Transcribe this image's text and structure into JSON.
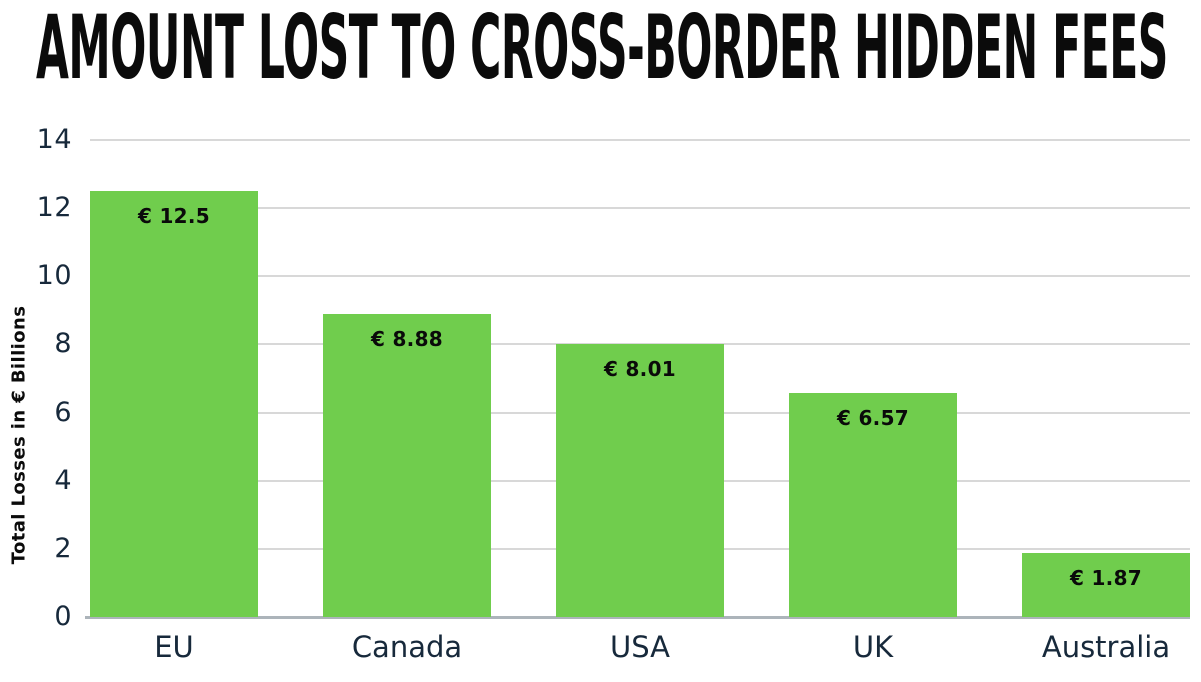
{
  "title": "AMOUNT LOST TO CROSS-BORDER HIDDEN FEES",
  "chart_data": {
    "type": "bar",
    "title": "AMOUNT LOST TO CROSS-BORDER HIDDEN FEES",
    "categories": [
      "EU",
      "Canada",
      "USA",
      "UK",
      "Australia"
    ],
    "values": [
      12.5,
      8.88,
      8.01,
      6.57,
      1.87
    ],
    "value_labels": [
      "€ 12.5",
      "€ 8.88",
      "€ 8.01",
      "€ 6.57",
      "€ 1.87"
    ],
    "xlabel": "",
    "ylabel": "Total Losses in € Billions",
    "yticks": [
      0,
      2,
      4,
      6,
      8,
      10,
      12,
      14
    ],
    "ylim": [
      0,
      14
    ],
    "grid": "horizontal",
    "legend": "none",
    "colors": {
      "bar": "#70CD4D",
      "gridline": "#D8D8D8",
      "baseline": "#ACB4BA",
      "axis_text": "#17293B",
      "bar_label_text": "#0A0A0A",
      "title_text": "#0B0B0B",
      "background": "#FFFFFF"
    }
  }
}
